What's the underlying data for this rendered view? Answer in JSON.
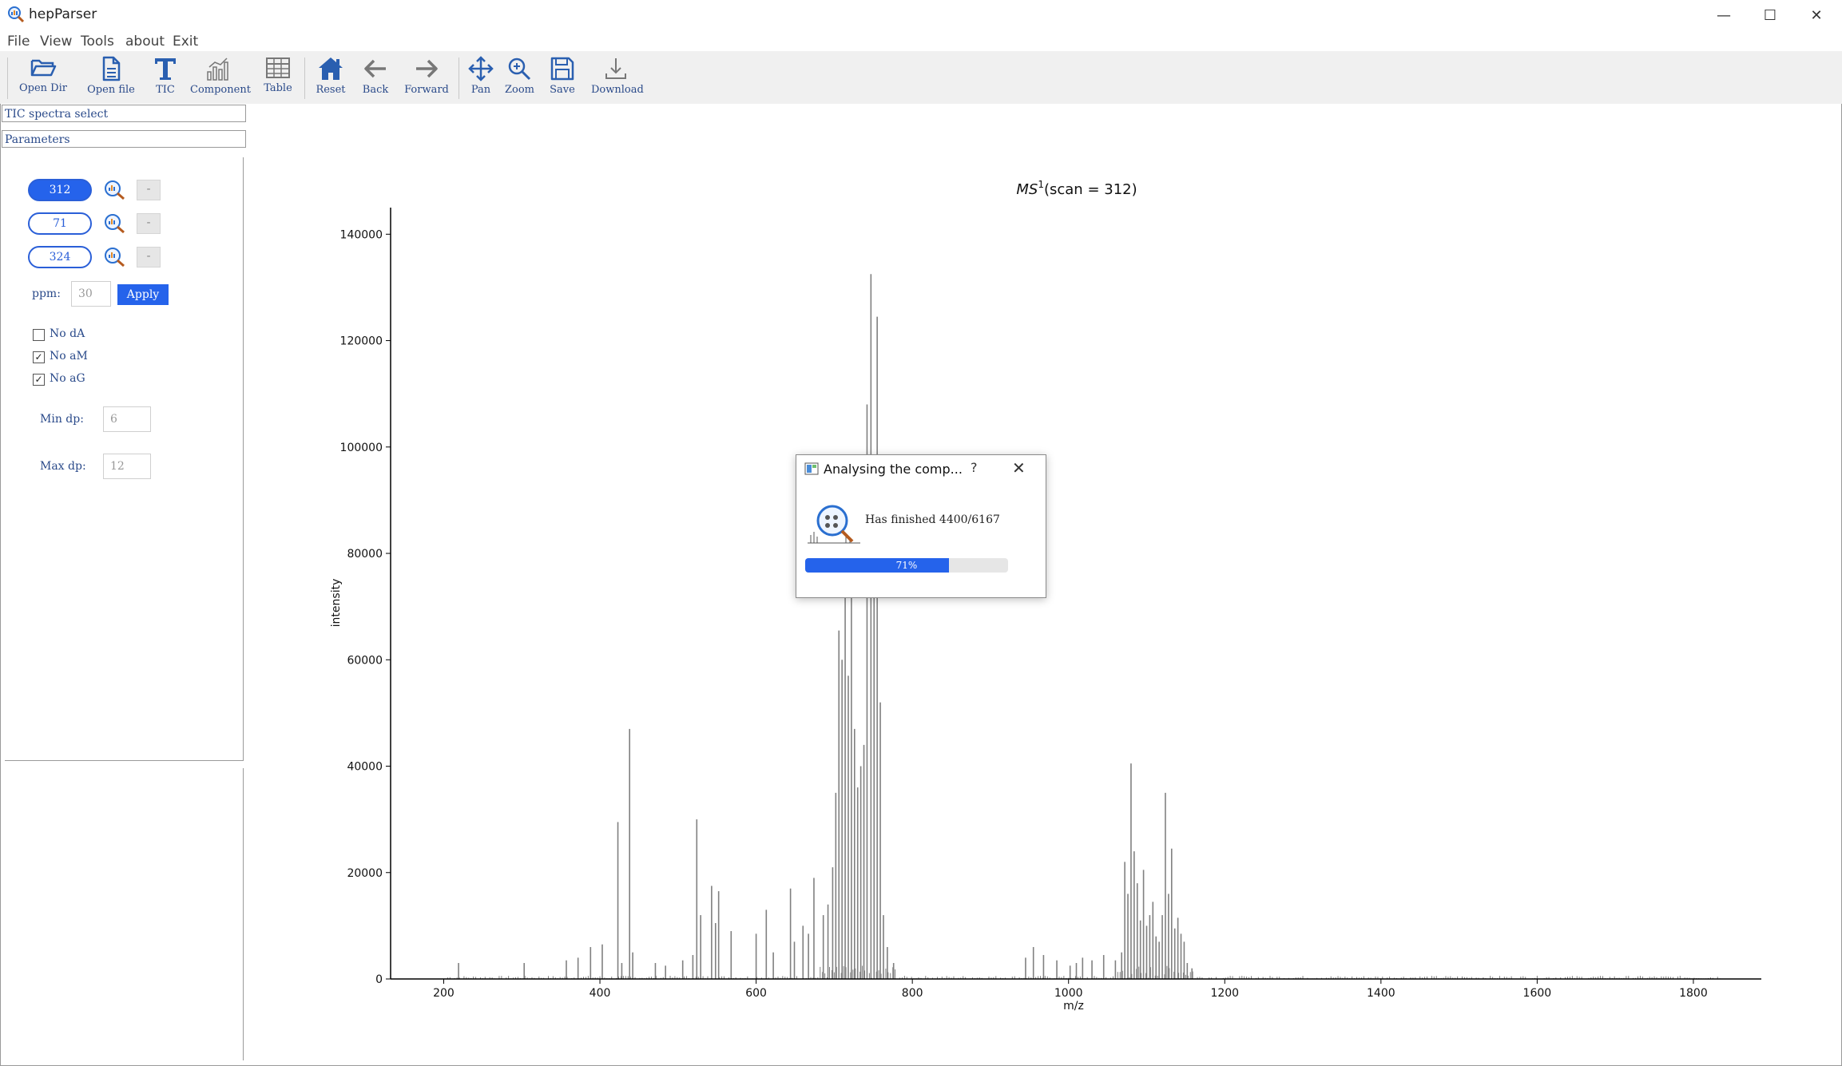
{
  "window": {
    "title": "hepParser",
    "controls": {
      "minimize": "—",
      "maximize": "☐",
      "close": "✕"
    }
  },
  "menu": [
    "File",
    "View",
    "Tools",
    "about",
    "Exit"
  ],
  "toolbar": [
    {
      "label": "Open Dir",
      "icon": "folder-open-icon"
    },
    {
      "label": "Open file",
      "icon": "file-icon"
    },
    {
      "label": "TIC",
      "icon": "text-t-icon"
    },
    {
      "label": "Component",
      "icon": "bar-chart-icon"
    },
    {
      "label": "Table",
      "icon": "table-icon"
    },
    {
      "label": "Reset",
      "icon": "home-icon"
    },
    {
      "label": "Back",
      "icon": "arrow-left-icon"
    },
    {
      "label": "Forward",
      "icon": "arrow-right-icon"
    },
    {
      "label": "Pan",
      "icon": "move-icon"
    },
    {
      "label": "Zoom",
      "icon": "zoom-icon"
    },
    {
      "label": "Save",
      "icon": "save-icon"
    },
    {
      "label": "Download",
      "icon": "download-icon"
    }
  ],
  "sidebar": {
    "tic_select": "TIC spectra select",
    "parameters": "Parameters",
    "scans": [
      {
        "value": "312",
        "active": true,
        "remove": "-"
      },
      {
        "value": "71",
        "active": false,
        "remove": "-"
      },
      {
        "value": "324",
        "active": false,
        "remove": "-"
      }
    ],
    "ppm_label": "ppm:",
    "ppm_value": "30",
    "apply_label": "Apply",
    "checkboxes": [
      {
        "label": "No dA",
        "checked": false
      },
      {
        "label": "No aM",
        "checked": true
      },
      {
        "label": "No aG",
        "checked": true
      }
    ],
    "min_dp_label": "Min dp:",
    "min_dp_value": "6",
    "max_dp_label": "Max dp:",
    "max_dp_value": "12"
  },
  "chart_data": {
    "type": "bar",
    "title_base": "MS",
    "title_sup": "1",
    "title_rest": "(scan = 312)",
    "xlabel": "m/z",
    "ylabel": "intensity",
    "xlim": [
      132,
      1887
    ],
    "ylim": [
      0,
      145000
    ],
    "xticks": [
      200,
      400,
      600,
      800,
      1000,
      1200,
      1400,
      1600,
      1800
    ],
    "yticks": [
      0,
      20000,
      40000,
      60000,
      80000,
      100000,
      120000,
      140000
    ],
    "color": "#808080",
    "peaks": [
      [
        219,
        3000
      ],
      [
        303,
        3000
      ],
      [
        357,
        3500
      ],
      [
        372,
        4000
      ],
      [
        388,
        6000
      ],
      [
        403,
        6500
      ],
      [
        423,
        29500
      ],
      [
        428,
        3000
      ],
      [
        438,
        47000
      ],
      [
        442,
        5000
      ],
      [
        471,
        3000
      ],
      [
        484,
        2500
      ],
      [
        506,
        3500
      ],
      [
        519,
        4500
      ],
      [
        524,
        30000
      ],
      [
        529,
        12000
      ],
      [
        543,
        17500
      ],
      [
        548,
        10500
      ],
      [
        552,
        16500
      ],
      [
        568,
        9000
      ],
      [
        600,
        8500
      ],
      [
        613,
        13000
      ],
      [
        622,
        5000
      ],
      [
        644,
        17000
      ],
      [
        649,
        7000
      ],
      [
        660,
        10000
      ],
      [
        667,
        8500
      ],
      [
        674,
        19000
      ],
      [
        686,
        12000
      ],
      [
        692,
        14000
      ],
      [
        698,
        21000
      ],
      [
        702,
        35000
      ],
      [
        706,
        65500
      ],
      [
        710,
        60000
      ],
      [
        714,
        82000
      ],
      [
        718,
        57000
      ],
      [
        722,
        73000
      ],
      [
        726,
        47000
      ],
      [
        730,
        36000
      ],
      [
        734,
        40000
      ],
      [
        738,
        44000
      ],
      [
        742,
        108000
      ],
      [
        747,
        132500
      ],
      [
        751,
        85000
      ],
      [
        755,
        124500
      ],
      [
        759,
        52000
      ],
      [
        763,
        12000
      ],
      [
        768,
        6000
      ],
      [
        776,
        3000
      ],
      [
        945,
        4000
      ],
      [
        955,
        6000
      ],
      [
        968,
        4500
      ],
      [
        985,
        3500
      ],
      [
        1002,
        2500
      ],
      [
        1010,
        3000
      ],
      [
        1018,
        4000
      ],
      [
        1030,
        3500
      ],
      [
        1045,
        4500
      ],
      [
        1060,
        3500
      ],
      [
        1068,
        5000
      ],
      [
        1072,
        22000
      ],
      [
        1076,
        16000
      ],
      [
        1080,
        40500
      ],
      [
        1084,
        24000
      ],
      [
        1088,
        18000
      ],
      [
        1092,
        11000
      ],
      [
        1096,
        20500
      ],
      [
        1100,
        10000
      ],
      [
        1104,
        12000
      ],
      [
        1108,
        14500
      ],
      [
        1112,
        8000
      ],
      [
        1116,
        7000
      ],
      [
        1120,
        12000
      ],
      [
        1124,
        35000
      ],
      [
        1128,
        16000
      ],
      [
        1132,
        24500
      ],
      [
        1136,
        9500
      ],
      [
        1140,
        11500
      ],
      [
        1144,
        8500
      ],
      [
        1148,
        7000
      ],
      [
        1152,
        3000
      ],
      [
        1158,
        2000
      ]
    ]
  },
  "dialog": {
    "title": "Analysing the comp...",
    "help": "?",
    "close": "✕",
    "message": "Has finished 4400/6167",
    "progress": 0.71,
    "progress_label": "71%"
  }
}
